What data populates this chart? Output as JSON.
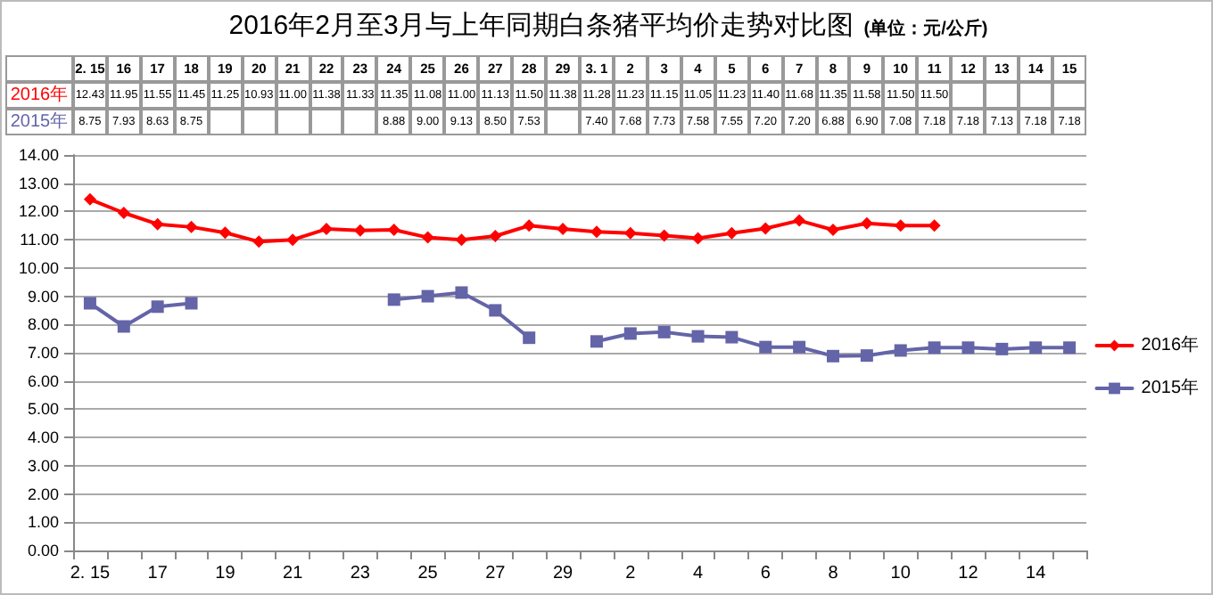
{
  "chart_data": {
    "type": "line",
    "title": "2016年2月至3月与上年同期白条猪平均价走势对比图",
    "subtitle": "(单位：元/公斤)",
    "categories": [
      "2. 15",
      "16",
      "17",
      "18",
      "19",
      "20",
      "21",
      "22",
      "23",
      "24",
      "25",
      "26",
      "27",
      "28",
      "29",
      "3. 1",
      "2",
      "3",
      "4",
      "5",
      "6",
      "7",
      "8",
      "9",
      "10",
      "11",
      "12",
      "13",
      "14",
      "15"
    ],
    "series": [
      {
        "name": "2016年",
        "color": "#ff0000",
        "marker": "diamond",
        "values": [
          12.43,
          11.95,
          11.55,
          11.45,
          11.25,
          10.93,
          11.0,
          11.38,
          11.33,
          11.35,
          11.08,
          11.0,
          11.13,
          11.5,
          11.38,
          11.28,
          11.23,
          11.15,
          11.05,
          11.23,
          11.4,
          11.68,
          11.35,
          11.58,
          11.5,
          11.5,
          null,
          null,
          null,
          null
        ],
        "value_labels": [
          "12.43",
          "11.95",
          "11.55",
          "11.45",
          "11.25",
          "10.93",
          "11.00",
          "11.38",
          "11.33",
          "11.35",
          "11.08",
          "11.00",
          "11.13",
          "11.50",
          "11.38",
          "11.28",
          "11.23",
          "11.15",
          "11.05",
          "11.23",
          "11.40",
          "11.68",
          "11.35",
          "11.58",
          "11.50",
          "11.50",
          null,
          null,
          null,
          null
        ]
      },
      {
        "name": "2015年",
        "color": "#6464a8",
        "marker": "square",
        "values": [
          8.75,
          7.93,
          8.63,
          8.75,
          null,
          null,
          null,
          null,
          null,
          8.88,
          9.0,
          9.13,
          8.5,
          7.53,
          null,
          7.4,
          7.68,
          7.73,
          7.58,
          7.55,
          7.2,
          7.2,
          6.88,
          6.9,
          7.08,
          7.18,
          7.18,
          7.13,
          7.18,
          7.18
        ],
        "value_labels": [
          "8.75",
          "7.93",
          "8.63",
          "8.75",
          null,
          null,
          null,
          null,
          null,
          "8.88",
          "9.00",
          "9.13",
          "8.50",
          "7.53",
          null,
          "7.40",
          "7.68",
          "7.73",
          "7.58",
          "7.55",
          "7.20",
          "7.20",
          "6.88",
          "6.90",
          "7.08",
          "7.18",
          "7.18",
          "7.13",
          "7.18",
          "7.18"
        ]
      }
    ],
    "ylim": [
      0,
      14
    ],
    "yticks": [
      {
        "value": 0,
        "label": "0.00"
      },
      {
        "value": 1,
        "label": "1.00"
      },
      {
        "value": 2,
        "label": "2.00"
      },
      {
        "value": 3,
        "label": "3.00"
      },
      {
        "value": 4,
        "label": "4.00"
      },
      {
        "value": 5,
        "label": "5.00"
      },
      {
        "value": 6,
        "label": "6.00"
      },
      {
        "value": 7,
        "label": "7.00"
      },
      {
        "value": 8,
        "label": "8.00"
      },
      {
        "value": 9,
        "label": "9.00"
      },
      {
        "value": 10,
        "label": "10.00"
      },
      {
        "value": 11,
        "label": "11.00"
      },
      {
        "value": 12,
        "label": "12.00"
      },
      {
        "value": 13,
        "label": "13.00"
      },
      {
        "value": 14,
        "label": "14.00"
      }
    ],
    "grid": "y",
    "legend": "right",
    "line_style": "solid"
  }
}
